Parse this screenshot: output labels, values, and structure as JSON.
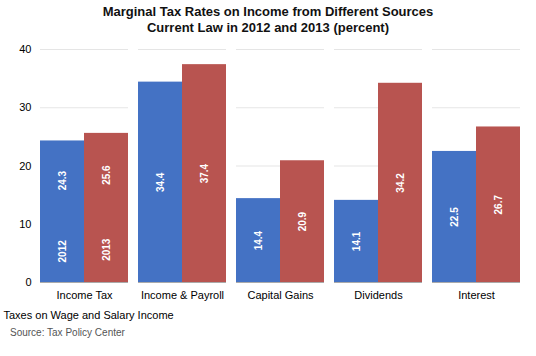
{
  "chart_data": {
    "type": "bar",
    "title": "Marginal Tax Rates on Income from Different Sources\nCurrent Law in 2012 and 2013 (percent)",
    "categories": [
      "Income Tax",
      "Income & Payroll",
      "Capital Gains",
      "Dividends",
      "Interest"
    ],
    "series": [
      {
        "name": "2012",
        "color": "#4472C4",
        "values": [
          24.3,
          34.4,
          14.4,
          14.1,
          22.5
        ]
      },
      {
        "name": "2013",
        "color": "#B85450",
        "values": [
          25.6,
          37.4,
          20.9,
          34.2,
          26.7
        ]
      }
    ],
    "xlabel": "Taxes on Wage and Salary Income",
    "source": "Source: Tax Policy Center",
    "ylim": [
      0,
      40
    ],
    "yticks": [
      0,
      10,
      20,
      30,
      40
    ],
    "grid": true,
    "data_labels": true
  }
}
